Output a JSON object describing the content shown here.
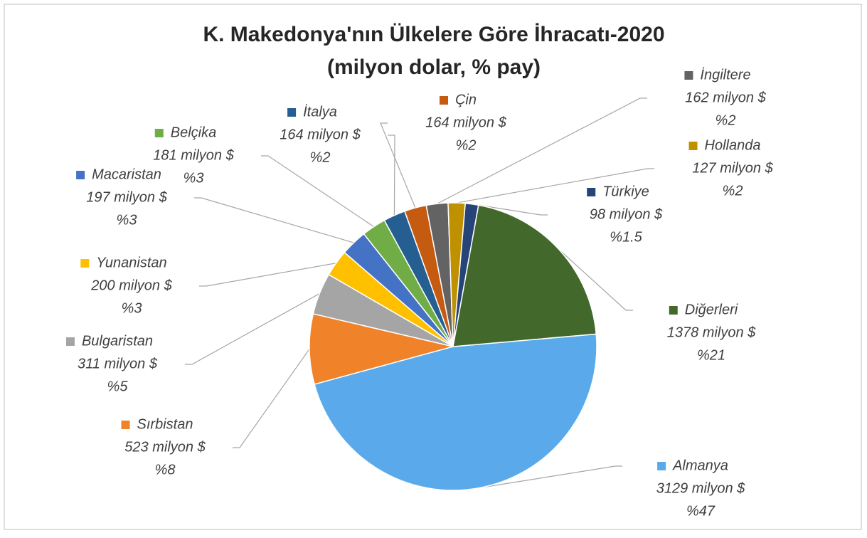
{
  "chart_data": {
    "type": "pie",
    "title": "K. Makedonya'nın Ülkelere Göre İhracatı-2020",
    "subtitle": "(milyon dolar, % pay)",
    "categories": [
      "Almanya",
      "Sırbistan",
      "Bulgaristan",
      "Yunanistan",
      "Macaristan",
      "Belçika",
      "İtalya",
      "Çin",
      "İngiltere",
      "Hollanda",
      "Türkiye",
      "Diğerleri"
    ],
    "values": [
      3129,
      523,
      311,
      200,
      197,
      181,
      164,
      164,
      162,
      127,
      98,
      1378
    ],
    "value_labels": [
      "3129 milyon $",
      "523 milyon $",
      "311 milyon $",
      "200 milyon $",
      "197 milyon $",
      "181 milyon $",
      "164 milyon $",
      "164 milyon $",
      "162 milyon $",
      "127 milyon $",
      "98 milyon $",
      "1378 milyon $"
    ],
    "share_labels": [
      "%47",
      "%8",
      "%5",
      "%3",
      "%3",
      "%3",
      "%2",
      "%2",
      "%2",
      "%2",
      "%1.5",
      "%21"
    ],
    "colors": [
      "#5aaaeb",
      "#f0822a",
      "#a5a5a5",
      "#ffc000",
      "#4472c4",
      "#70ad47",
      "#255e91",
      "#c55a11",
      "#636363",
      "#bf9000",
      "#264478",
      "#43682b"
    ]
  }
}
